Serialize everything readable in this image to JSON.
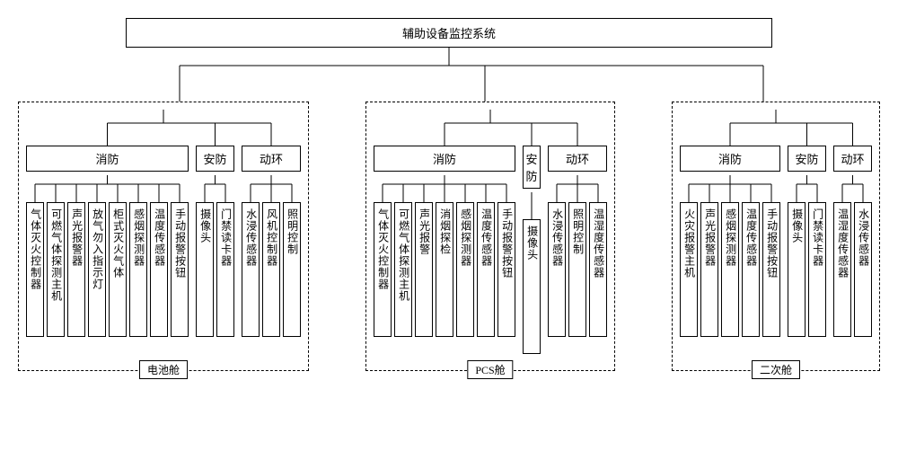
{
  "root_title": "辅助设备监控系统",
  "colors": {
    "line": "#000000",
    "bg": "#ffffff"
  },
  "cabins": [
    {
      "label": "电池舱",
      "categories": [
        {
          "name": "消防",
          "devices": [
            "气体灭火控制器",
            "可燃气体探测主机",
            "声光报警器",
            "放气勿入指示灯",
            "柜式灭火气体",
            "感烟探测器",
            "温度传感器",
            "手动报警按钮"
          ]
        },
        {
          "name": "安防",
          "devices": [
            "摄像头",
            "门禁读卡器"
          ]
        },
        {
          "name": "动环",
          "devices": [
            "水浸传感器",
            "风机控制器",
            "照明控制"
          ]
        }
      ]
    },
    {
      "label": "PCS舱",
      "categories": [
        {
          "name": "消防",
          "devices": [
            "气体灭火控制器",
            "可燃气体探测主机",
            "声光报警",
            "消烟探检",
            "感烟探测器",
            "温度传感器",
            "手动报警按钮"
          ]
        },
        {
          "name": "安防",
          "devices": [
            "摄像头"
          ]
        },
        {
          "name": "动环",
          "devices": [
            "水浸传感器",
            "照明控制",
            "温湿度传感器"
          ]
        }
      ]
    },
    {
      "label": "二次舱",
      "categories": [
        {
          "name": "消防",
          "devices": [
            "火灾报警主机",
            "声光报警器",
            "感烟探测器",
            "温度传感器",
            "手动报警按钮"
          ]
        },
        {
          "name": "安防",
          "devices": [
            "摄像头",
            "门禁读卡器"
          ]
        },
        {
          "name": "动环",
          "devices": [
            "温湿度传感器",
            "水浸传感器"
          ]
        }
      ]
    }
  ]
}
